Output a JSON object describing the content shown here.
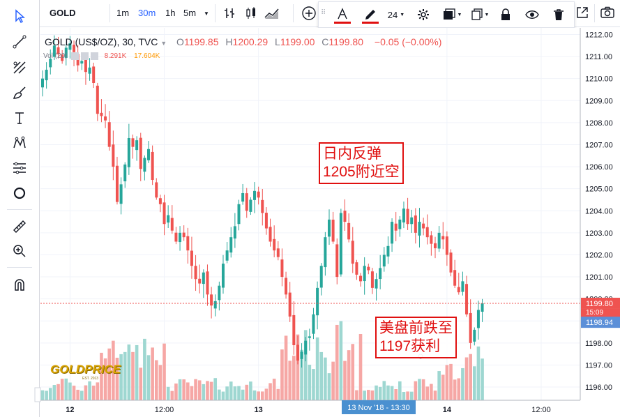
{
  "toolbar": {
    "symbol": "GOLD",
    "intervals": [
      "1m",
      "30m",
      "1h",
      "5m"
    ],
    "active_interval": "30m",
    "font_size": "24"
  },
  "legend": {
    "title": "GOLD (US$/OZ), 30, TVC",
    "o_label": "O",
    "o_value": "1199.85",
    "h_label": "H",
    "h_value": "1200.29",
    "l_label": "L",
    "l_value": "1199.00",
    "c_label": "C",
    "c_value": "1199.80",
    "change": "−0.05 (−0.00%)",
    "vol_label": "Vol (20)",
    "vol_value1": "8.291K",
    "vol_value2": "17.604K"
  },
  "annotations": {
    "box1": "日内反弹\n1205附近空",
    "box2": "美盘前跌至\n1197获利"
  },
  "price_tags": {
    "last": "1199.80",
    "countdown": "15:09",
    "other": "1198.94"
  },
  "crosshair_label": "13 Nov '18 - 13:30",
  "logo": {
    "text": "GOLDPRICE",
    "sub": "EST. 2013"
  },
  "colors": {
    "up": "#26a69a",
    "down": "#ef5350",
    "vol_up": "#9ed7d1",
    "vol_down": "#f6a7a5",
    "accent": "#2962ff",
    "annotation": "#e01010"
  },
  "chart_data": {
    "type": "candlestick",
    "symbol": "GOLD (US$/OZ)",
    "interval": "30",
    "y_ticks": [
      "1212.00",
      "1211.00",
      "1210.00",
      "1209.00",
      "1208.00",
      "1207.00",
      "1206.00",
      "1205.00",
      "1204.00",
      "1203.00",
      "1202.00",
      "1201.00",
      "1200.00",
      "1199.00",
      "1198.00",
      "1197.00",
      "1196.00"
    ],
    "ylim": [
      1195.4,
      1212.3
    ],
    "x_ticks": [
      {
        "label": "12",
        "bar": 7,
        "bold": true
      },
      {
        "label": "12:00",
        "bar": 31
      },
      {
        "label": "13",
        "bar": 55,
        "bold": true
      },
      {
        "label": "14",
        "bar": 103,
        "bold": true
      },
      {
        "label": "12:00",
        "bar": 127
      }
    ],
    "close_series": [
      1210.0,
      1210.4,
      1210.9,
      1211.5,
      1211.1,
      1210.8,
      1211.4,
      1211.6,
      1211.2,
      1210.6,
      1210.8,
      1210.3,
      1210.5,
      1209.8,
      1208.4,
      1208.3,
      1208.1,
      1206.9,
      1206.0,
      1204.4,
      1205.2,
      1206.1,
      1207.3,
      1206.9,
      1207.2,
      1205.9,
      1206.4,
      1206.8,
      1205.4,
      1204.6,
      1204.3,
      1203.4,
      1203.8,
      1203.1,
      1202.6,
      1203.0,
      1202.8,
      1202.2,
      1201.5,
      1200.9,
      1200.7,
      1201.2,
      1200.2,
      1199.7,
      1199.9,
      1200.6,
      1201.6,
      1202.2,
      1202.8,
      1203.3,
      1204.3,
      1204.8,
      1204.0,
      1204.5,
      1204.9,
      1204.6,
      1203.9,
      1203.2,
      1202.6,
      1202.2,
      1201.9,
      1201.0,
      1200.2,
      1199.2,
      1197.9,
      1197.2,
      1197.6,
      1198.1,
      1198.3,
      1199.3,
      1200.5,
      1201.5,
      1202.8,
      1203.6,
      1202.6,
      1201.0,
      1203.9,
      1203.5,
      1202.7,
      1201.6,
      1201.1,
      1200.8,
      1201.5,
      1201.3,
      1200.5,
      1200.9,
      1201.4,
      1202.0,
      1202.4,
      1203.5,
      1203.1,
      1203.6,
      1204.1,
      1203.4,
      1203.7,
      1203.0,
      1203.5,
      1203.2,
      1202.8,
      1202.5,
      1202.3,
      1203.0,
      1202.7,
      1202.0,
      1201.2,
      1200.6,
      1200.3,
      1200.8,
      1199.3,
      1198.0,
      1198.6,
      1199.5,
      1199.8
    ]
  }
}
